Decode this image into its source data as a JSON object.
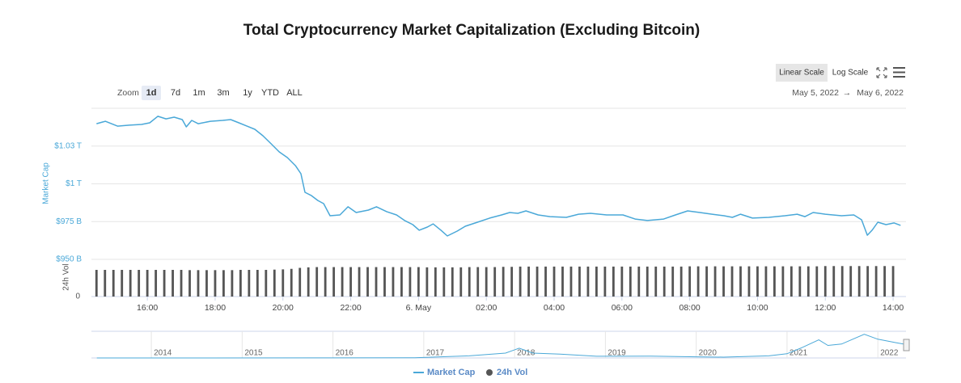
{
  "chart_data": {
    "type": "line",
    "title": "Total Cryptocurrency Market Capitalization (Excluding Bitcoin)",
    "ylabel": "Market Cap",
    "y2label": "24h Vol",
    "zoom": {
      "label": "Zoom",
      "buttons": [
        "1d",
        "7d",
        "1m",
        "3m",
        "1y",
        "YTD",
        "ALL"
      ],
      "selected": 0
    },
    "scale_buttons": {
      "buttons": [
        "Linear Scale",
        "Log Scale"
      ],
      "selected": 0
    },
    "date_range": {
      "from": "May 5, 2022",
      "separator": "→",
      "to": "May 6, 2022"
    },
    "xlim": [
      14.35,
      38.38
    ],
    "xticks": [
      {
        "value": 16,
        "label": "16:00"
      },
      {
        "value": 18,
        "label": "18:00"
      },
      {
        "value": 20,
        "label": "20:00"
      },
      {
        "value": 22,
        "label": "22:00"
      },
      {
        "value": 24,
        "label": "6. May"
      },
      {
        "value": 26,
        "label": "02:00"
      },
      {
        "value": 28,
        "label": "04:00"
      },
      {
        "value": 30,
        "label": "06:00"
      },
      {
        "value": 32,
        "label": "08:00"
      },
      {
        "value": 34,
        "label": "10:00"
      },
      {
        "value": 36,
        "label": "12:00"
      },
      {
        "value": 38,
        "label": "14:00"
      }
    ],
    "ylim": [
      950,
      1050
    ],
    "yticks": [
      {
        "value": 950,
        "label": "$950 B"
      },
      {
        "value": 975,
        "label": "$975 B"
      },
      {
        "value": 1000,
        "label": "$1 T"
      },
      {
        "value": 1025,
        "label": "$1.03 T"
      }
    ],
    "y2lim": [
      0,
      140
    ],
    "y2ticks": [
      0
    ],
    "grid": true,
    "legend": "bottom",
    "series": [
      {
        "name": "Market Cap",
        "color": "#4aa8d8",
        "x": [
          14.5,
          14.76,
          15.12,
          15.47,
          15.83,
          16.07,
          16.31,
          16.55,
          16.79,
          17.03,
          17.15,
          17.31,
          17.5,
          17.86,
          18.22,
          18.46,
          18.7,
          18.94,
          19.17,
          19.41,
          19.65,
          19.89,
          20.13,
          20.37,
          20.53,
          20.65,
          20.84,
          21.03,
          21.2,
          21.39,
          21.68,
          21.92,
          22.16,
          22.52,
          22.76,
          23.06,
          23.35,
          23.59,
          23.83,
          24.02,
          24.26,
          24.43,
          24.66,
          24.85,
          25.14,
          25.38,
          25.74,
          26.1,
          26.45,
          26.69,
          26.93,
          27.17,
          27.53,
          27.88,
          28.36,
          28.72,
          29.07,
          29.55,
          30.03,
          30.39,
          30.75,
          31.23,
          31.58,
          31.94,
          32.3,
          32.66,
          33.01,
          33.26,
          33.5,
          33.85,
          34.33,
          34.81,
          35.17,
          35.4,
          35.64,
          36,
          36.48,
          36.84,
          37.07,
          37.24,
          37.38,
          37.55,
          37.79,
          38.03,
          38.22
        ],
        "values": [
          1039.8,
          1041.4,
          1038.2,
          1038.8,
          1039.3,
          1040.4,
          1044.7,
          1043,
          1044.1,
          1042.5,
          1037.7,
          1042,
          1039.8,
          1041.4,
          1042,
          1042.5,
          1040.4,
          1038.2,
          1036.1,
          1031.8,
          1026.5,
          1021.1,
          1017.4,
          1012,
          1006.7,
          994.4,
          992.2,
          989,
          986.9,
          978.9,
          979.4,
          984.8,
          981,
          982.6,
          984.8,
          981.6,
          979.4,
          975.7,
          973,
          969.3,
          971.4,
          973.5,
          969.3,
          965.5,
          968.7,
          971.9,
          974.6,
          977.3,
          979.4,
          981,
          980.5,
          982.1,
          979.4,
          978.3,
          977.8,
          979.9,
          980.5,
          979.4,
          979.4,
          976.7,
          975.7,
          976.7,
          979.4,
          982.1,
          981,
          979.9,
          978.9,
          977.8,
          979.9,
          977.3,
          977.8,
          978.9,
          979.9,
          978.3,
          981,
          979.9,
          978.9,
          979.4,
          976.2,
          966,
          969.3,
          974.6,
          973,
          974.1,
          972.5
        ]
      },
      {
        "name": "24h Vol",
        "color": "#555555",
        "axis": "y2",
        "x": [
          14.5,
          14.75,
          15,
          15.25,
          15.5,
          15.75,
          16,
          16.25,
          16.5,
          16.75,
          17,
          17.25,
          17.5,
          17.75,
          18,
          18.25,
          18.5,
          18.75,
          19,
          19.25,
          19.5,
          19.75,
          20,
          20.25,
          20.5,
          20.75,
          21,
          21.25,
          21.5,
          21.75,
          22,
          22.25,
          22.5,
          22.75,
          23,
          23.25,
          23.5,
          23.75,
          24,
          24.25,
          24.5,
          24.75,
          25,
          25.25,
          25.5,
          25.75,
          26,
          26.25,
          26.5,
          26.75,
          27,
          27.25,
          27.5,
          27.75,
          28,
          28.25,
          28.5,
          28.75,
          29,
          29.25,
          29.5,
          29.75,
          30,
          30.25,
          30.5,
          30.75,
          31,
          31.25,
          31.5,
          31.75,
          32,
          32.25,
          32.5,
          32.75,
          33,
          33.25,
          33.5,
          33.75,
          34,
          34.25,
          34.5,
          34.75,
          35,
          35.25,
          35.5,
          35.75,
          36,
          36.25,
          36.5,
          36.75,
          37,
          37.25,
          37.5,
          37.75,
          38
        ],
        "values": [
          105,
          105,
          105,
          105,
          105,
          105,
          105,
          105,
          105,
          105,
          105,
          104,
          104,
          104,
          104,
          104,
          104,
          105,
          105,
          105,
          105,
          106,
          107,
          109,
          113,
          115,
          116,
          116,
          116,
          116,
          116,
          116,
          116,
          116,
          116,
          116,
          116,
          116,
          116,
          115,
          115,
          115,
          115,
          115,
          116,
          116,
          116,
          116,
          117,
          117,
          118,
          118,
          118,
          118,
          118,
          118,
          118,
          118,
          118,
          118,
          118,
          118,
          118,
          118,
          118,
          118,
          118,
          118,
          118,
          118,
          119,
          119,
          119,
          119,
          119,
          119,
          119,
          119,
          119,
          119,
          119,
          119,
          119,
          119,
          119,
          119,
          120,
          120,
          120,
          120,
          120,
          120,
          120,
          120,
          120
        ]
      }
    ],
    "navigator": {
      "color": "#4aa8d8",
      "xlim": [
        2013.34,
        2022.31
      ],
      "ylim": [
        0,
        1800
      ],
      "xticks": [
        2014,
        2015,
        2016,
        2017,
        2018,
        2019,
        2020,
        2021,
        2022
      ],
      "x": [
        2013.4,
        2016,
        2016.9,
        2017.5,
        2017.9,
        2018.05,
        2018.2,
        2018.5,
        2018.9,
        2019.5,
        2020,
        2020.3,
        2020.8,
        2021,
        2021.15,
        2021.35,
        2021.45,
        2021.6,
        2021.85,
        2022,
        2022.2,
        2022.3
      ],
      "values": [
        2,
        5,
        20,
        150,
        350,
        700,
        350,
        280,
        120,
        130,
        80,
        60,
        150,
        300,
        700,
        1300,
        900,
        1000,
        1700,
        1350,
        1100,
        980
      ]
    }
  }
}
